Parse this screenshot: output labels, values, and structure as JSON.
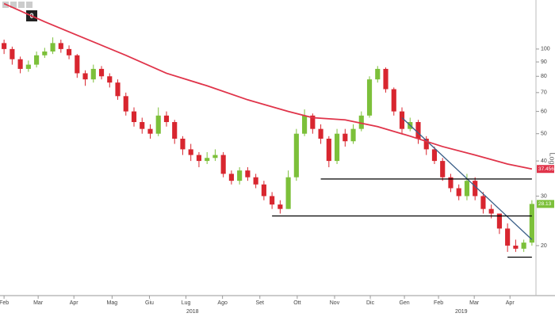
{
  "toolbar": {
    "button": "0"
  },
  "chart_data": {
    "type": "candlestick",
    "x": [
      0,
      1,
      2,
      3,
      4,
      5,
      6,
      7,
      8,
      9,
      10,
      11,
      12,
      13,
      14,
      15,
      16,
      17,
      18,
      19,
      20,
      21,
      22,
      23,
      24,
      25,
      26,
      27,
      28,
      29,
      30,
      31,
      32,
      33,
      34,
      35,
      36,
      37,
      38,
      39,
      40,
      41,
      42,
      43,
      44,
      45,
      46,
      47,
      48,
      49,
      50,
      51,
      52,
      53,
      54,
      55,
      56,
      57,
      58,
      59,
      60,
      61,
      62,
      63,
      64,
      65
    ],
    "open": [
      105,
      100,
      92,
      85,
      88,
      95,
      98,
      105,
      100,
      95,
      82,
      78,
      85,
      80,
      76,
      68,
      60,
      55,
      52,
      50,
      58,
      55,
      48,
      44,
      42,
      40,
      41,
      42,
      36,
      34,
      37,
      35,
      33,
      30,
      28,
      27,
      35,
      50,
      58,
      52,
      48,
      40,
      50,
      47,
      52,
      58,
      78,
      85,
      72,
      60,
      52,
      55,
      48,
      44,
      40,
      35,
      32,
      30,
      34,
      30,
      27,
      26,
      23,
      20,
      19.5,
      20.5
    ],
    "high": [
      108,
      102,
      94,
      91,
      98,
      101,
      110,
      108,
      103,
      96,
      84,
      88,
      87,
      82,
      78,
      70,
      62,
      57,
      54,
      62,
      60,
      56,
      49,
      46,
      43,
      43,
      44,
      43,
      37,
      38,
      38,
      36,
      34,
      31,
      29,
      37,
      52,
      61,
      59,
      54,
      49,
      52,
      52,
      54,
      60,
      80,
      87,
      86,
      73,
      62,
      57,
      56,
      49,
      45,
      41,
      36,
      33,
      36,
      35,
      31,
      28,
      26,
      24,
      21,
      21,
      29
    ],
    "low": [
      96,
      88,
      82,
      83,
      86,
      93,
      96,
      97,
      92,
      79,
      74,
      76,
      78,
      73,
      66,
      58,
      53,
      50,
      48,
      49,
      53,
      46,
      42,
      40,
      38,
      39,
      40,
      35,
      33,
      33,
      34,
      32,
      29,
      27,
      26,
      27,
      34,
      49,
      50,
      46,
      38,
      39,
      45,
      46,
      51,
      57,
      76,
      70,
      58,
      50,
      51,
      46,
      42,
      39,
      34,
      31,
      29,
      29,
      29,
      26,
      25,
      22,
      19,
      19,
      19,
      20
    ],
    "close": [
      100,
      92,
      85,
      88,
      95,
      98,
      105,
      100,
      95,
      82,
      78,
      85,
      80,
      76,
      68,
      60,
      55,
      52,
      50,
      58,
      55,
      48,
      44,
      42,
      40,
      41,
      42,
      36,
      34,
      37,
      35,
      33,
      30,
      28,
      27,
      35,
      50,
      58,
      52,
      48,
      40,
      50,
      47,
      52,
      58,
      78,
      85,
      72,
      60,
      52,
      55,
      48,
      44,
      40,
      35,
      32,
      30,
      34,
      30,
      27,
      26,
      23,
      20,
      19.5,
      20.5,
      28.13
    ],
    "up_color": "#7cc03a",
    "down_color": "#d8262f",
    "moving_average": {
      "x": [
        0,
        5,
        9,
        15,
        20,
        25,
        30,
        35,
        38,
        42,
        46,
        50,
        54,
        58,
        62,
        65
      ],
      "values": [
        145,
        125,
        112,
        95,
        82,
        74,
        66,
        60,
        57,
        56,
        53,
        49,
        45,
        42,
        39,
        37.4562
      ],
      "color": "#e0344a"
    },
    "lines": [
      {
        "x": [
          49,
          65
        ],
        "values": [
          57,
          21
        ],
        "color": "#3b5f88"
      },
      {
        "x": [
          39,
          65
        ],
        "values": [
          34.5,
          34.5
        ],
        "color": "#000000"
      },
      {
        "x": [
          33,
          65
        ],
        "values": [
          25.5,
          25.5
        ],
        "color": "#000000"
      },
      {
        "x": [
          62,
          65
        ],
        "values": [
          18.2,
          18.2
        ],
        "color": "#000000"
      }
    ],
    "log_label": "Log",
    "log_scale": true,
    "ylim": [
      13.37,
      149.4
    ],
    "yticks": [
      20,
      30,
      40,
      50,
      60,
      70,
      80,
      90,
      100
    ],
    "xlim": [
      -0.5,
      65.5
    ],
    "xticks": [
      {
        "value": 0,
        "label": "Feb"
      },
      {
        "value": 4.2,
        "label": "Mar"
      },
      {
        "value": 8.6,
        "label": "Apr"
      },
      {
        "value": 13.3,
        "label": "Mag"
      },
      {
        "value": 17.9,
        "label": "Giu"
      },
      {
        "value": 22.4,
        "label": "Lug"
      },
      {
        "value": 26.9,
        "label": "Ago"
      },
      {
        "value": 31.5,
        "label": "Set"
      },
      {
        "value": 36.1,
        "label": "Ott"
      },
      {
        "value": 40.7,
        "label": "Nov"
      },
      {
        "value": 45.1,
        "label": "Dic"
      },
      {
        "value": 49.3,
        "label": "Gen"
      },
      {
        "value": 53.5,
        "label": "Feb"
      },
      {
        "value": 57.9,
        "label": "Mar"
      },
      {
        "value": 62.3,
        "label": "Apr"
      }
    ],
    "years": [
      {
        "value": 23.2,
        "label": "2018"
      },
      {
        "value": 56.3,
        "label": "2019"
      }
    ]
  }
}
